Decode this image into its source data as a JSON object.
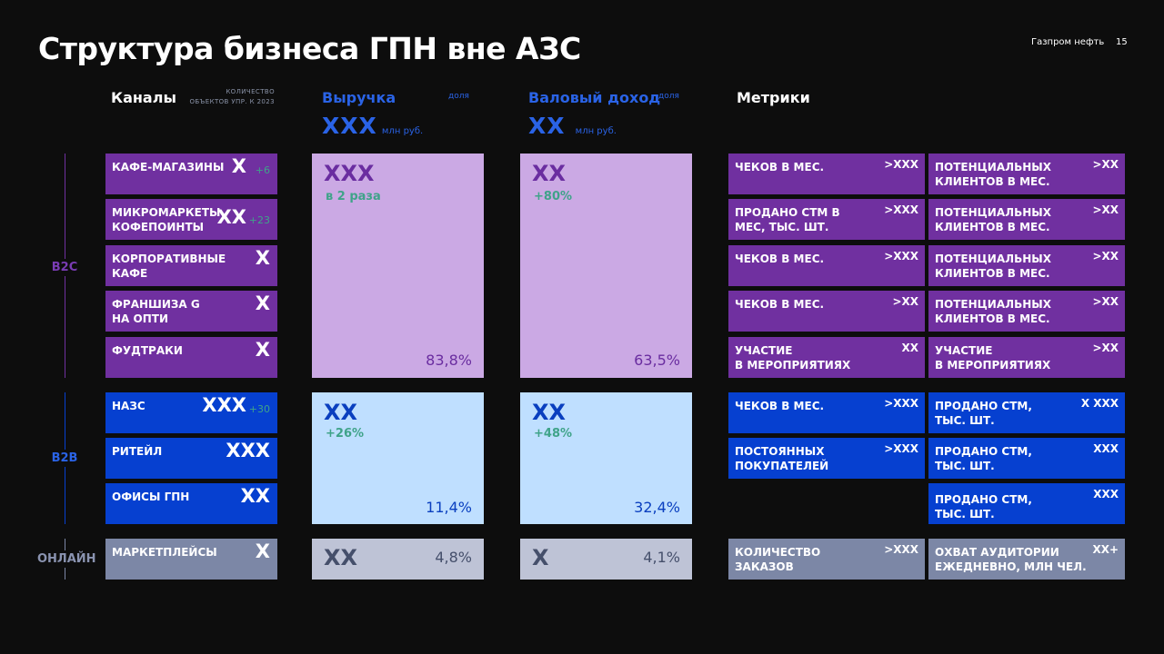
{
  "header": {
    "title": "Структура бизнеса ГПН вне АЗС",
    "brand": "Газпром нефть",
    "page": "15"
  },
  "columns": {
    "channels": "Каналы",
    "count_note_1": "КОЛИЧЕСТВО",
    "count_note_2": "ОБЪЕКТОВ УПР. К 2023",
    "revenue": "Выручка",
    "revenue_share": "доля",
    "revenue_value": "ХХХ",
    "revenue_unit": "млн руб.",
    "gross": "Валовый доход",
    "gross_share": "доля",
    "gross_value": "ХХ",
    "gross_unit": "млн руб.",
    "metrics": "Метрики"
  },
  "groups": {
    "b2c": "B2C",
    "b2b": "B2B",
    "online": "ОНЛАЙН"
  },
  "channels": [
    {
      "name": "Кафе-магазины",
      "count": "Х",
      "delta": "+6"
    },
    {
      "name": "Микромаркеты\nкофепоинты",
      "count": "ХХ",
      "delta": "+23"
    },
    {
      "name": "Корпоративные\nкафе",
      "count": "Х",
      "delta": ""
    },
    {
      "name": "Франшиза G\nна ОПТИ",
      "count": "Х",
      "delta": ""
    },
    {
      "name": "Фудтраки",
      "count": "Х",
      "delta": ""
    },
    {
      "name": "НАЗС",
      "count": "ХХХ",
      "delta": "+30"
    },
    {
      "name": "Ритейл",
      "count": "ХХХ",
      "delta": ""
    },
    {
      "name": "Офисы ГПН",
      "count": "ХХ",
      "delta": ""
    },
    {
      "name": "Маркетплейсы",
      "count": "Х",
      "delta": ""
    }
  ],
  "revenue": {
    "b2c": {
      "value": "ХХХ",
      "growth": "в 2 раза",
      "share": "83,8%"
    },
    "b2b": {
      "value": "ХХ",
      "growth": "+26%",
      "share": "11,4%"
    },
    "online": {
      "value": "ХХ",
      "share": "4,8%"
    }
  },
  "gross": {
    "b2c": {
      "value": "ХХ",
      "growth": "+80%",
      "share": "63,5%"
    },
    "b2b": {
      "value": "ХХ",
      "growth": "+48%",
      "share": "32,4%"
    },
    "online": {
      "value": "Х",
      "share": "4,1%"
    }
  },
  "metrics": [
    {
      "a": "Чеков в мес.",
      "av": ">ХХХ",
      "b": "Потенциальных\nклиентов в мес.",
      "bv": ">ХХ"
    },
    {
      "a": "Продано СТМ в\nмес, тыс. шт.",
      "av": ">ХХХ",
      "b": "Потенциальных\nклиентов в мес.",
      "bv": ">ХХ"
    },
    {
      "a": "Чеков в мес.",
      "av": ">ХХХ",
      "b": "Потенциальных\nклиентов в мес.",
      "bv": ">ХХ"
    },
    {
      "a": "Чеков в мес.",
      "av": ">ХХ",
      "b": "Потенциальных\nклиентов в мес.",
      "bv": ">ХХ"
    },
    {
      "a": "Участие\nв мероприятиях",
      "av": "ХХ",
      "b": "Участие\nв мероприятиях",
      "bv": ">ХХ"
    },
    {
      "a": "Чеков в мес.",
      "av": ">ХХХ",
      "b": "Продано СТМ,\nтыс. шт.",
      "bv": "Х ХХХ"
    },
    {
      "a": "Постоянных\nпокупателей",
      "av": ">ХХХ",
      "b": "Продано СТМ,\nтыс. шт.",
      "bv": "ХХХ"
    },
    {
      "a": "",
      "av": "",
      "b": "Продано СТМ,\nтыс. шт.",
      "bv": "ХХХ"
    },
    {
      "a": "Количество\nзаказов",
      "av": ">ХХХ",
      "b": "Охват аудитории\nежедневно, млн чел.",
      "bv": "ХХ+"
    }
  ],
  "colors": {
    "b2c": "#7030a0",
    "b2b": "#0640d0",
    "online": "#7c87a6",
    "panel_b2c": "#cba9e4",
    "panel_b2b": "#bfdfff",
    "panel_online": "#bec3d6",
    "growth": "#3fa389"
  }
}
